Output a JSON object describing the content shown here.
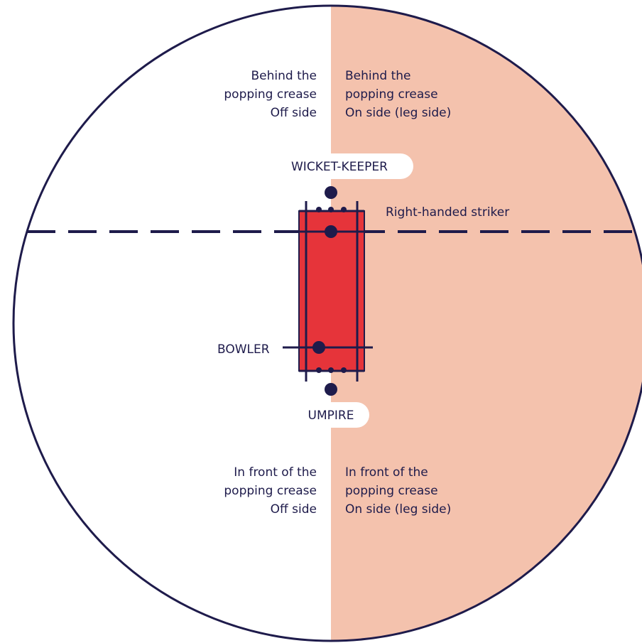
{
  "colors": {
    "navy": "#1e1b4b",
    "leg_side_fill": "#f4c2ad",
    "pitch_red": "#e6343a",
    "white": "#ffffff"
  },
  "zones": {
    "behind_off": [
      "Behind the",
      "popping crease",
      "Off side"
    ],
    "behind_on": [
      "Behind the",
      "popping crease",
      "On side (leg side)"
    ],
    "front_off": [
      "In front of the",
      "popping crease",
      "Off side"
    ],
    "front_on": [
      "In front of the",
      "popping crease",
      "On side (leg side)"
    ]
  },
  "players": {
    "wicket_keeper": "WICKET-KEEPER",
    "striker": "Right-handed striker",
    "bowler": "BOWLER",
    "umpire": "UMPIRE"
  }
}
